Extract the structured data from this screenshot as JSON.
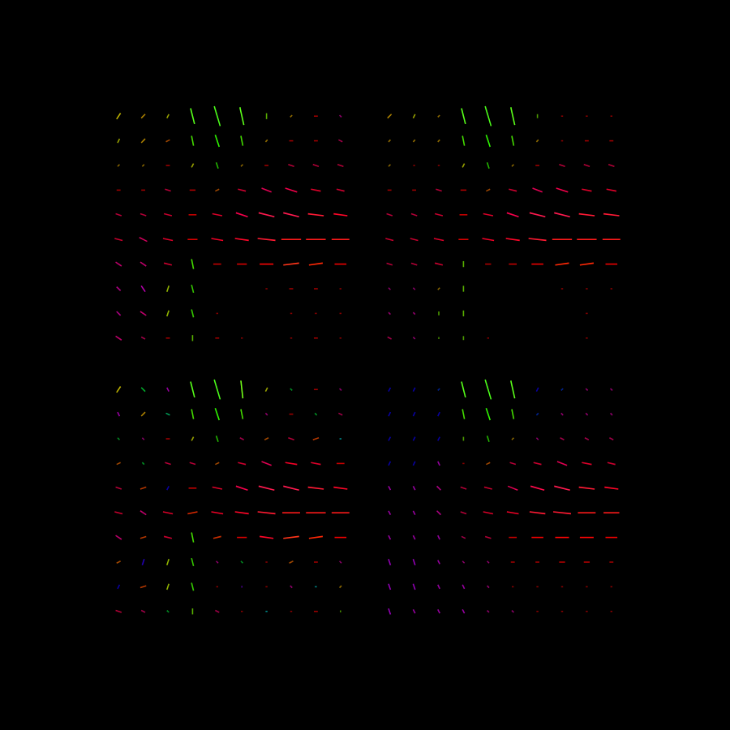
{
  "chart_data": [
    {
      "type": "quiver",
      "tick_labels": false,
      "grid": false,
      "x": [
        0,
        1,
        2,
        3,
        4,
        5,
        6,
        7,
        8,
        9
      ],
      "y": [
        9,
        8,
        7,
        6,
        5,
        4,
        3,
        2,
        1,
        0
      ],
      "xlim": [
        -0.5,
        9.5
      ],
      "ylim": [
        -0.5,
        9.5
      ],
      "u": [
        [
          2,
          2,
          1,
          -2,
          -3,
          -2,
          0,
          1,
          2,
          1
        ],
        [
          1,
          2,
          2,
          -1,
          -2,
          -1,
          1,
          2,
          2,
          2
        ],
        [
          1,
          1,
          2,
          1,
          -1,
          1,
          2,
          3,
          3,
          3
        ],
        [
          2,
          2,
          3,
          3,
          2,
          4,
          5,
          6,
          5,
          4
        ],
        [
          3,
          3,
          4,
          4,
          5,
          6,
          8,
          8,
          8,
          7
        ],
        [
          4,
          4,
          5,
          5,
          6,
          7,
          9,
          10,
          10,
          9
        ],
        [
          3,
          3,
          4,
          -1,
          4,
          5,
          7,
          8,
          7,
          6
        ],
        [
          2,
          2,
          1,
          -1,
          0,
          0,
          1,
          2,
          2,
          1
        ],
        [
          2,
          3,
          1,
          -1,
          1,
          0,
          0,
          1,
          1,
          1
        ],
        [
          3,
          2,
          2,
          0,
          2,
          1,
          0,
          1,
          2,
          1
        ]
      ],
      "v": [
        [
          3,
          2,
          2,
          8,
          10,
          9,
          3,
          1,
          0,
          -1
        ],
        [
          2,
          2,
          1,
          5,
          6,
          5,
          1,
          0,
          0,
          -1
        ],
        [
          1,
          1,
          0,
          2,
          3,
          1,
          0,
          -1,
          -1,
          -1
        ],
        [
          0,
          0,
          -1,
          0,
          1,
          -1,
          -2,
          -2,
          -1,
          -1
        ],
        [
          -1,
          -1,
          -1,
          0,
          -1,
          -2,
          -2,
          -2,
          -1,
          -1
        ],
        [
          -1,
          -2,
          -1,
          0,
          -1,
          -1,
          -1,
          0,
          0,
          0
        ],
        [
          -2,
          -2,
          -1,
          5,
          0,
          0,
          0,
          1,
          1,
          0
        ],
        [
          -2,
          -3,
          3,
          4,
          0,
          0,
          0,
          0,
          0,
          0
        ],
        [
          -2,
          -2,
          3,
          4,
          0,
          0,
          0,
          0,
          0,
          0
        ],
        [
          -2,
          -1,
          0,
          3,
          0,
          0,
          0,
          0,
          0,
          0
        ]
      ]
    },
    {
      "type": "quiver",
      "tick_labels": false,
      "grid": false,
      "x": [
        0,
        1,
        2,
        3,
        4,
        5,
        6,
        7,
        8,
        9
      ],
      "y": [
        9,
        8,
        7,
        6,
        5,
        4,
        3,
        2,
        1,
        0
      ],
      "xlim": [
        -0.5,
        9.5
      ],
      "ylim": [
        -0.5,
        9.5
      ],
      "u": [
        [
          2,
          1,
          1,
          -2,
          -3,
          -2,
          0,
          1,
          1,
          1
        ],
        [
          1,
          1,
          1,
          -1,
          -2,
          -1,
          1,
          1,
          2,
          2
        ],
        [
          1,
          1,
          1,
          1,
          -1,
          1,
          2,
          3,
          3,
          3
        ],
        [
          2,
          2,
          3,
          3,
          2,
          4,
          5,
          6,
          5,
          5
        ],
        [
          3,
          3,
          4,
          4,
          5,
          6,
          8,
          8,
          8,
          8
        ],
        [
          4,
          4,
          5,
          5,
          6,
          7,
          9,
          10,
          10,
          9
        ],
        [
          3,
          3,
          4,
          0,
          3,
          4,
          6,
          7,
          7,
          6
        ],
        [
          1,
          1,
          1,
          0,
          0,
          0,
          0,
          1,
          1,
          1
        ],
        [
          1,
          1,
          0,
          0,
          0,
          0,
          0,
          0,
          1,
          0
        ],
        [
          2,
          1,
          0,
          0,
          1,
          0,
          0,
          0,
          1,
          0
        ]
      ],
      "v": [
        [
          2,
          2,
          1,
          8,
          10,
          9,
          2,
          0,
          0,
          0
        ],
        [
          1,
          1,
          1,
          5,
          6,
          5,
          1,
          0,
          0,
          0
        ],
        [
          1,
          0,
          0,
          2,
          3,
          1,
          0,
          -1,
          -1,
          -1
        ],
        [
          0,
          0,
          -1,
          0,
          1,
          -1,
          -2,
          -2,
          -1,
          -1
        ],
        [
          -1,
          -1,
          -1,
          0,
          -1,
          -2,
          -2,
          -2,
          -1,
          -1
        ],
        [
          -1,
          -1,
          -1,
          0,
          -1,
          -1,
          -1,
          0,
          0,
          0
        ],
        [
          -1,
          -1,
          -1,
          3,
          0,
          0,
          0,
          1,
          1,
          0
        ],
        [
          -1,
          -1,
          1,
          3,
          0,
          0,
          0,
          0,
          0,
          0
        ],
        [
          -1,
          -1,
          2,
          3,
          0,
          0,
          0,
          0,
          0,
          0
        ],
        [
          -1,
          -1,
          1,
          2,
          0,
          0,
          0,
          0,
          0,
          0
        ]
      ]
    },
    {
      "type": "quiver",
      "tick_labels": false,
      "grid": false,
      "x": [
        0,
        1,
        2,
        3,
        4,
        5,
        6,
        7,
        8,
        9
      ],
      "y": [
        9,
        8,
        7,
        6,
        5,
        4,
        3,
        2,
        1,
        0
      ],
      "xlim": [
        -0.5,
        9.5
      ],
      "ylim": [
        -0.5,
        9.5
      ],
      "u": [
        [
          2,
          -2,
          1,
          -2,
          -3,
          -1,
          1,
          -1,
          2,
          1
        ],
        [
          1,
          2,
          -2,
          -1,
          -2,
          -1,
          1,
          2,
          -1,
          2
        ],
        [
          -1,
          1,
          2,
          1,
          -1,
          2,
          2,
          3,
          3,
          -1
        ],
        [
          2,
          -1,
          3,
          3,
          2,
          4,
          5,
          6,
          5,
          4
        ],
        [
          3,
          3,
          -1,
          4,
          5,
          6,
          8,
          8,
          8,
          7
        ],
        [
          4,
          3,
          5,
          5,
          6,
          7,
          9,
          9,
          10,
          9
        ],
        [
          3,
          3,
          4,
          -1,
          4,
          5,
          7,
          8,
          7,
          6
        ],
        [
          2,
          -1,
          1,
          -1,
          1,
          -1,
          1,
          2,
          2,
          1
        ],
        [
          -1,
          3,
          1,
          -1,
          1,
          0,
          1,
          1,
          -1,
          1
        ],
        [
          3,
          2,
          -1,
          0,
          2,
          1,
          -1,
          1,
          2,
          0
        ]
      ],
      "v": [
        [
          3,
          2,
          -2,
          8,
          10,
          9,
          2,
          1,
          0,
          -1
        ],
        [
          -2,
          2,
          1,
          5,
          6,
          5,
          -1,
          0,
          1,
          -1
        ],
        [
          1,
          -1,
          0,
          2,
          3,
          -1,
          1,
          -1,
          1,
          0
        ],
        [
          1,
          1,
          -1,
          -1,
          1,
          -1,
          -2,
          -1,
          -1,
          0
        ],
        [
          -1,
          1,
          -2,
          0,
          -1,
          -2,
          -2,
          -2,
          -1,
          -1
        ],
        [
          -1,
          -2,
          -1,
          1,
          -1,
          -1,
          -1,
          0,
          0,
          0
        ],
        [
          -2,
          1,
          -1,
          5,
          1,
          0,
          -1,
          1,
          1,
          0
        ],
        [
          1,
          -3,
          3,
          4,
          -1,
          1,
          0,
          1,
          0,
          -1
        ],
        [
          -2,
          1,
          3,
          4,
          0,
          -1,
          0,
          -1,
          0,
          1
        ],
        [
          -1,
          -1,
          1,
          3,
          -1,
          0,
          0,
          0,
          0,
          1
        ]
      ]
    },
    {
      "type": "quiver",
      "tick_labels": false,
      "grid": false,
      "x": [
        0,
        1,
        2,
        3,
        4,
        5,
        6,
        7,
        8,
        9
      ],
      "y": [
        9,
        8,
        7,
        6,
        5,
        4,
        3,
        2,
        1,
        0
      ],
      "xlim": [
        -0.5,
        9.5
      ],
      "ylim": [
        -0.5,
        9.5
      ],
      "u": [
        [
          -1,
          -1,
          -1,
          -2,
          -3,
          -2,
          -1,
          -1,
          1,
          1
        ],
        [
          -1,
          -1,
          -1,
          -1,
          -2,
          -1,
          -1,
          1,
          1,
          1
        ],
        [
          -1,
          -1,
          -1,
          0,
          -1,
          1,
          1,
          2,
          2,
          2
        ],
        [
          -1,
          -1,
          1,
          1,
          2,
          3,
          4,
          5,
          5,
          4
        ],
        [
          1,
          1,
          2,
          3,
          4,
          5,
          7,
          8,
          8,
          7
        ],
        [
          1,
          1,
          2,
          3,
          5,
          6,
          8,
          9,
          9,
          8
        ],
        [
          1,
          1,
          1,
          2,
          3,
          4,
          6,
          7,
          7,
          6
        ],
        [
          1,
          1,
          1,
          1,
          1,
          2,
          2,
          3,
          3,
          2
        ],
        [
          1,
          1,
          1,
          1,
          1,
          1,
          1,
          1,
          1,
          1
        ],
        [
          1,
          1,
          1,
          1,
          1,
          1,
          1,
          1,
          1,
          1
        ]
      ],
      "v": [
        [
          -2,
          -2,
          -1,
          8,
          10,
          9,
          -2,
          -1,
          -1,
          -1
        ],
        [
          -2,
          -2,
          -2,
          5,
          6,
          5,
          -1,
          -1,
          -1,
          -1
        ],
        [
          -2,
          -2,
          -2,
          2,
          3,
          1,
          -1,
          -1,
          -1,
          -1
        ],
        [
          -2,
          -2,
          -2,
          0,
          1,
          -1,
          -1,
          -2,
          -1,
          -1
        ],
        [
          -2,
          -2,
          -2,
          -1,
          -1,
          -2,
          -2,
          -2,
          -1,
          -1
        ],
        [
          -2,
          -2,
          -2,
          -1,
          -1,
          -1,
          -1,
          -1,
          0,
          0
        ],
        [
          -2,
          -2,
          -2,
          -1,
          -1,
          0,
          0,
          0,
          0,
          0
        ],
        [
          -3,
          -3,
          -2,
          -1,
          -1,
          0,
          0,
          0,
          0,
          0
        ],
        [
          -3,
          -3,
          -2,
          -2,
          -1,
          0,
          0,
          0,
          0,
          0
        ],
        [
          -3,
          -2,
          -2,
          -2,
          -1,
          -1,
          0,
          0,
          0,
          0
        ]
      ]
    }
  ]
}
